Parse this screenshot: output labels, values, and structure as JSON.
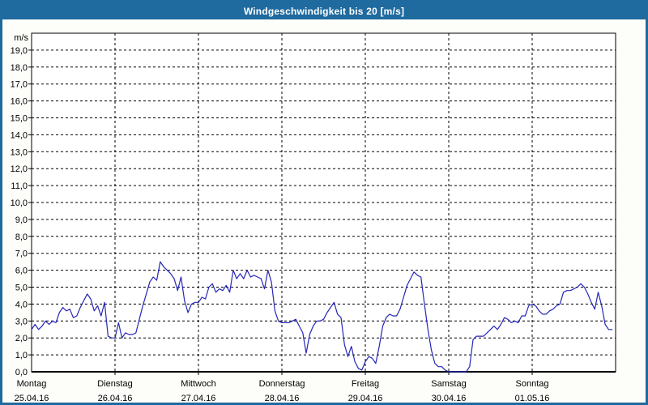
{
  "window": {
    "title": "Windgeschwindigkeit bis 20 [m/s]"
  },
  "colors": {
    "titlebar_bg": "#1f6a9e",
    "titlebar_text": "#ffffff",
    "window_border": "#1f6a9e",
    "window_bg": "#fdfdfa",
    "plot_bg": "#ffffff",
    "plot_border": "#000000",
    "gridline": "#000000",
    "tick_text": "#000000",
    "line": "#2626b8"
  },
  "chart_data": {
    "type": "line",
    "title": "Windgeschwindigkeit bis 20 [m/s]",
    "y_axis_unit": "m/s",
    "ylim": [
      0,
      20
    ],
    "ytick_step": 1,
    "ytick_labels": [
      "0,0",
      "1,0",
      "2,0",
      "3,0",
      "4,0",
      "5,0",
      "6,0",
      "7,0",
      "8,0",
      "9,0",
      "10,0",
      "11,0",
      "12,0",
      "13,0",
      "14,0",
      "15,0",
      "16,0",
      "17,0",
      "18,0",
      "19,0"
    ],
    "grid": "dashed",
    "legend": "none",
    "x_axis_days": [
      {
        "name": "Montag",
        "date": "25.04.16"
      },
      {
        "name": "Dienstag",
        "date": "26.04.16"
      },
      {
        "name": "Mittwoch",
        "date": "27.04.16"
      },
      {
        "name": "Donnerstag",
        "date": "28.04.16"
      },
      {
        "name": "Freitag",
        "date": "29.04.16"
      },
      {
        "name": "Samstag",
        "date": "30.04.16"
      },
      {
        "name": "Sonntag",
        "date": "01.05.16"
      }
    ],
    "series": [
      {
        "name": "Windgeschwindigkeit",
        "unit": "m/s",
        "sampling": "hourly",
        "values": [
          2.5,
          2.8,
          2.5,
          2.7,
          3.0,
          2.8,
          3.0,
          2.9,
          3.5,
          3.8,
          3.6,
          3.7,
          3.2,
          3.3,
          3.8,
          4.2,
          4.6,
          4.3,
          3.6,
          3.9,
          3.3,
          4.1,
          2.1,
          2.0,
          2.0,
          2.9,
          2.0,
          2.3,
          2.2,
          2.2,
          2.3,
          3.1,
          3.9,
          4.6,
          5.3,
          5.6,
          5.4,
          6.5,
          6.2,
          6.0,
          5.8,
          5.5,
          4.8,
          5.6,
          4.2,
          3.5,
          4.0,
          4.1,
          4.1,
          4.4,
          4.3,
          5.0,
          5.2,
          4.7,
          4.9,
          4.8,
          5.1,
          4.7,
          6.0,
          5.5,
          5.8,
          5.5,
          6.0,
          5.6,
          5.7,
          5.6,
          5.5,
          4.9,
          6.0,
          5.3,
          3.6,
          3.0,
          2.9,
          2.9,
          2.9,
          3.0,
          3.1,
          2.7,
          2.3,
          1.1,
          2.2,
          2.7,
          3.0,
          3.0,
          3.1,
          3.5,
          3.8,
          4.1,
          3.4,
          3.2,
          1.6,
          0.9,
          1.5,
          0.6,
          0.2,
          0.1,
          0.6,
          0.9,
          0.8,
          0.5,
          1.5,
          2.7,
          3.2,
          3.4,
          3.3,
          3.3,
          3.7,
          4.4,
          5.1,
          5.5,
          5.9,
          5.7,
          5.6,
          4.0,
          2.5,
          1.3,
          0.5,
          0.3,
          0.3,
          0.1,
          0.0,
          0.0,
          0.0,
          0.0,
          0.0,
          0.0,
          0.3,
          1.9,
          2.1,
          2.1,
          2.1,
          2.3,
          2.5,
          2.7,
          2.5,
          2.8,
          3.2,
          3.1,
          2.9,
          3.0,
          2.9,
          3.3,
          3.3,
          3.9,
          4.0,
          3.9,
          3.6,
          3.4,
          3.4,
          3.6,
          3.7,
          3.9,
          4.0,
          4.7,
          4.8,
          4.8,
          4.9,
          5.0,
          5.2,
          5.0,
          4.6,
          4.1,
          3.7,
          4.7,
          3.9,
          2.8,
          2.5,
          2.5
        ]
      }
    ]
  }
}
